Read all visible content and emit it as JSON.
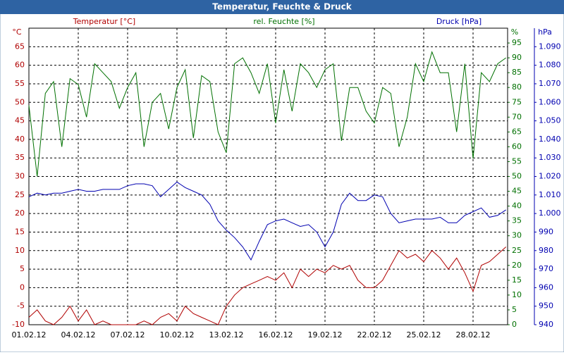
{
  "chart_data": {
    "type": "line",
    "title": "Temperatur, Feuchte & Druck",
    "ylabel": "°C",
    "y2label": "%",
    "y3label": "hPa",
    "x": [
      0,
      0.5,
      1,
      1.5,
      2,
      2.5,
      3,
      3.5,
      4,
      4.5,
      5,
      5.5,
      6,
      6.5,
      7,
      7.5,
      8,
      8.5,
      9,
      9.5,
      10,
      10.5,
      11,
      11.5,
      12,
      12.5,
      13,
      13.5,
      14,
      14.5,
      15,
      15.5,
      16,
      16.5,
      17,
      17.5,
      18,
      18.5,
      19,
      19.5,
      20,
      20.5,
      21,
      21.5,
      22,
      22.5,
      23,
      23.5,
      24,
      24.5,
      25,
      25.5,
      26,
      26.5,
      27,
      27.5,
      28,
      28.5,
      29
    ],
    "xlim": [
      0,
      29.1
    ],
    "xticks": [
      {
        "value": 0,
        "label": "01.02.12"
      },
      {
        "value": 3,
        "label": "04.02.12"
      },
      {
        "value": 6,
        "label": "07.02.12"
      },
      {
        "value": 9,
        "label": "10.02.12"
      },
      {
        "value": 12,
        "label": "13.02.12"
      },
      {
        "value": 15,
        "label": "16.02.12"
      },
      {
        "value": 18,
        "label": "19.02.12"
      },
      {
        "value": 21,
        "label": "22.02.12"
      },
      {
        "value": 24,
        "label": "25.02.12"
      },
      {
        "value": 27,
        "label": "28.02.12"
      }
    ],
    "ylim": [
      -10,
      70
    ],
    "yticks": [
      -10,
      -5,
      0,
      5,
      10,
      15,
      20,
      25,
      30,
      35,
      40,
      45,
      50,
      55,
      60,
      65
    ],
    "y2lim": [
      0,
      100
    ],
    "y2ticks": [
      0,
      5,
      10,
      15,
      20,
      25,
      30,
      35,
      40,
      45,
      50,
      55,
      60,
      65,
      70,
      75,
      80,
      85,
      90,
      95
    ],
    "y3lim": [
      940,
      1100
    ],
    "y3ticks": [
      940,
      950,
      960,
      970,
      980,
      990,
      {
        "value": 1000,
        "label": "1.000"
      },
      {
        "value": 1010,
        "label": "1.010"
      },
      {
        "value": 1020,
        "label": "1.020"
      },
      {
        "value": 1030,
        "label": "1.030"
      },
      {
        "value": 1040,
        "label": "1.040"
      },
      {
        "value": 1050,
        "label": "1.050"
      },
      {
        "value": 1060,
        "label": "1.060"
      },
      {
        "value": 1070,
        "label": "1.070"
      },
      {
        "value": 1080,
        "label": "1.080"
      },
      {
        "value": 1090,
        "label": "1.090"
      }
    ],
    "grid": true,
    "series": [
      {
        "name": "Temperatur [°C]",
        "color": "#b00000",
        "axis": "y",
        "values": [
          -8,
          -6,
          -9,
          -10,
          -8,
          -5,
          -9,
          -6,
          -10,
          -9,
          -10,
          -10,
          -10,
          -10,
          -9,
          -10,
          -8,
          -7,
          -9,
          -5,
          -7,
          -8,
          -9,
          -10,
          -5,
          -2,
          0,
          1,
          2,
          3,
          2,
          4,
          0,
          5,
          3,
          5,
          4,
          6,
          5,
          6,
          2,
          0,
          0,
          2,
          6,
          10,
          8,
          9,
          7,
          10,
          8,
          5,
          8,
          4,
          -1,
          6,
          7,
          9,
          11
        ]
      },
      {
        "name": "rel. Feuchte [%]",
        "color": "#007000",
        "axis": "y2",
        "values": [
          74,
          50,
          78,
          82,
          60,
          83,
          81,
          70,
          88,
          85,
          82,
          73,
          80,
          85,
          60,
          75,
          78,
          66,
          80,
          86,
          63,
          84,
          82,
          65,
          58,
          88,
          90,
          85,
          78,
          88,
          68,
          86,
          72,
          88,
          85,
          80,
          86,
          88,
          62,
          80,
          80,
          72,
          68,
          80,
          78,
          60,
          70,
          88,
          82,
          92,
          85,
          85,
          65,
          88,
          56,
          85,
          82,
          88,
          90
        ]
      },
      {
        "name": "Druck [hPa]",
        "color": "#0000b0",
        "axis": "y3",
        "values": [
          1009,
          1011,
          1010,
          1011,
          1011,
          1012,
          1013,
          1012,
          1012,
          1013,
          1013,
          1013,
          1015,
          1016,
          1016,
          1015,
          1009,
          1013,
          1017,
          1014,
          1012,
          1010,
          1005,
          996,
          991,
          987,
          982,
          975,
          985,
          994,
          996,
          997,
          995,
          993,
          994,
          990,
          982,
          990,
          1005,
          1011,
          1007,
          1007,
          1010,
          1009,
          1000,
          995,
          996,
          997,
          997,
          997,
          998,
          995,
          995,
          999,
          1001,
          1003,
          998,
          999,
          1002
        ]
      }
    ]
  }
}
